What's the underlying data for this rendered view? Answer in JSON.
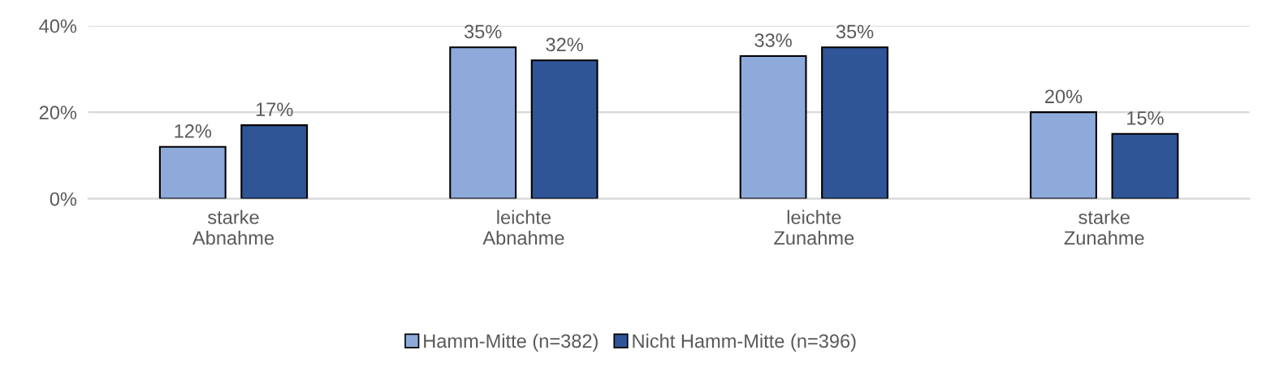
{
  "chart_data": {
    "type": "bar",
    "categories": [
      "starke\nAbnahme",
      "leichte\nAbnahme",
      "leichte\nZunahme",
      "starke\nZunahme"
    ],
    "series": [
      {
        "name": "Hamm-Mitte (n=382)",
        "color": "#8eaadb",
        "values": [
          12,
          35,
          33,
          20
        ],
        "value_labels": [
          "12%",
          "35%",
          "33%",
          "20%"
        ]
      },
      {
        "name": "Nicht Hamm-Mitte (n=396)",
        "color": "#2f5597",
        "values": [
          17,
          32,
          35,
          15
        ],
        "value_labels": [
          "17%",
          "32%",
          "35%",
          "15%"
        ]
      }
    ],
    "ylim": [
      0,
      40
    ],
    "yticks": [
      {
        "value": 0,
        "label": "0%"
      },
      {
        "value": 20,
        "label": "20%"
      },
      {
        "value": 40,
        "label": "40%"
      }
    ],
    "grid": "y",
    "legend": "bottom"
  }
}
